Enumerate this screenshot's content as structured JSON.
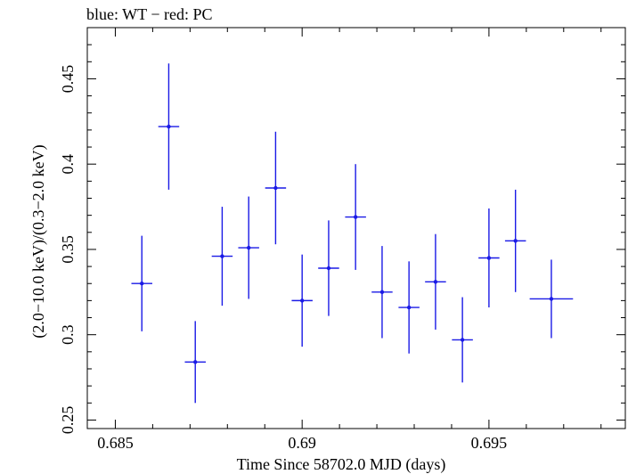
{
  "chart_data": {
    "type": "scatter",
    "title": "blue: WT − red: PC",
    "xlabel": "Time Since 58702.0 MJD (days)",
    "ylabel": "(2.0−10.0 keV)/(0.3−2.0 keV)",
    "xlim": [
      0.68425,
      0.69865
    ],
    "ylim": [
      0.245,
      0.48
    ],
    "xticks": [
      0.685,
      0.69,
      0.695
    ],
    "xtick_labels": [
      "0.685",
      "0.69",
      "0.695"
    ],
    "yticks": [
      0.25,
      0.3,
      0.35,
      0.4,
      0.45
    ],
    "ytick_labels": [
      "0.25",
      "0.3",
      "0.35",
      "0.4",
      "0.45"
    ],
    "grid": false,
    "series": [
      {
        "color": "#1a1ae6",
        "points": [
          {
            "x": 0.68571,
            "y": 0.33,
            "xerr": 0.00028,
            "yerr_low": 0.028,
            "yerr_high": 0.028
          },
          {
            "x": 0.68643,
            "y": 0.422,
            "xerr": 0.00028,
            "yerr_low": 0.037,
            "yerr_high": 0.037
          },
          {
            "x": 0.68714,
            "y": 0.284,
            "xerr": 0.00028,
            "yerr_low": 0.024,
            "yerr_high": 0.024
          },
          {
            "x": 0.68786,
            "y": 0.346,
            "xerr": 0.00028,
            "yerr_low": 0.029,
            "yerr_high": 0.029
          },
          {
            "x": 0.68857,
            "y": 0.351,
            "xerr": 0.00028,
            "yerr_low": 0.03,
            "yerr_high": 0.03
          },
          {
            "x": 0.68929,
            "y": 0.386,
            "xerr": 0.00028,
            "yerr_low": 0.033,
            "yerr_high": 0.033
          },
          {
            "x": 0.69,
            "y": 0.32,
            "xerr": 0.00028,
            "yerr_low": 0.027,
            "yerr_high": 0.027
          },
          {
            "x": 0.69071,
            "y": 0.339,
            "xerr": 0.00028,
            "yerr_low": 0.028,
            "yerr_high": 0.028
          },
          {
            "x": 0.69143,
            "y": 0.369,
            "xerr": 0.00028,
            "yerr_low": 0.031,
            "yerr_high": 0.031
          },
          {
            "x": 0.69214,
            "y": 0.325,
            "xerr": 0.00028,
            "yerr_low": 0.027,
            "yerr_high": 0.027
          },
          {
            "x": 0.69286,
            "y": 0.316,
            "xerr": 0.00028,
            "yerr_low": 0.027,
            "yerr_high": 0.027
          },
          {
            "x": 0.69357,
            "y": 0.331,
            "xerr": 0.00028,
            "yerr_low": 0.028,
            "yerr_high": 0.028
          },
          {
            "x": 0.69429,
            "y": 0.297,
            "xerr": 0.00028,
            "yerr_low": 0.025,
            "yerr_high": 0.025
          },
          {
            "x": 0.695,
            "y": 0.345,
            "xerr": 0.00028,
            "yerr_low": 0.029,
            "yerr_high": 0.029
          },
          {
            "x": 0.69571,
            "y": 0.355,
            "xerr": 0.00028,
            "yerr_low": 0.03,
            "yerr_high": 0.03
          },
          {
            "x": 0.69667,
            "y": 0.321,
            "xerr": 0.00058,
            "yerr_low": 0.023,
            "yerr_high": 0.023
          }
        ]
      }
    ]
  }
}
